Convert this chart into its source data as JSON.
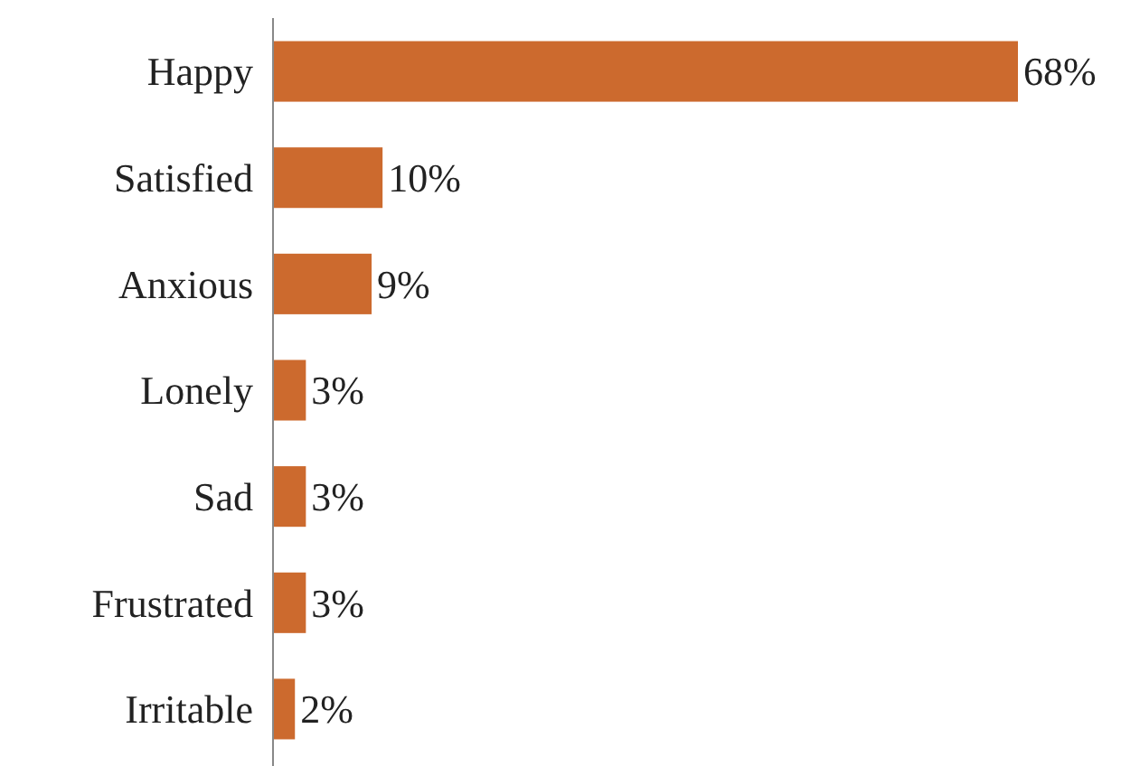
{
  "chart_data": {
    "type": "bar",
    "orientation": "horizontal",
    "categories": [
      "Happy",
      "Satisfied",
      "Anxious",
      "Lonely",
      "Sad",
      "Frustrated",
      "Irritable"
    ],
    "values": [
      68,
      10,
      9,
      3,
      3,
      3,
      2
    ],
    "value_labels": [
      "68%",
      "10%",
      "9%",
      "3%",
      "3%",
      "3%",
      "2%"
    ],
    "color": "#cc6a2e"
  }
}
